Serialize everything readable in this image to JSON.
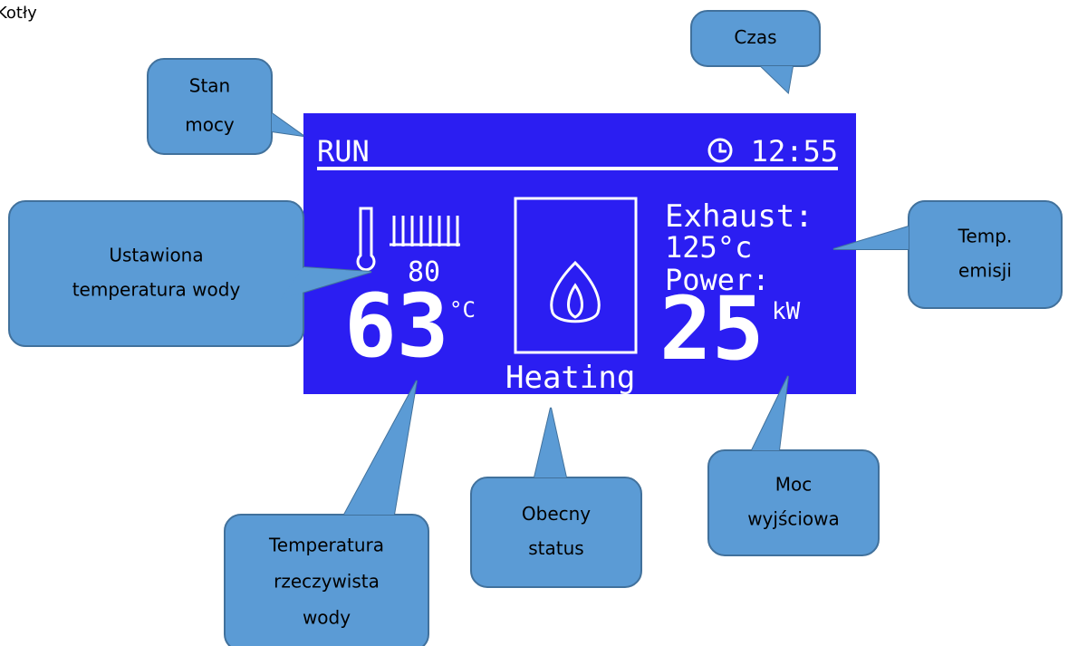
{
  "header": {
    "title": "Kotły"
  },
  "display": {
    "status": "RUN",
    "time": "12:55",
    "set_temperature": "80",
    "water_temperature": "63",
    "water_unit": "°C",
    "mode": "Heating",
    "exhaust_label": "Exhaust:",
    "exhaust_value": "125°c",
    "power_label": "Power:",
    "power_value": "25",
    "power_unit": "kW"
  },
  "callouts": [
    {
      "lines": [
        "Stan",
        "mocy"
      ]
    },
    {
      "lines": [
        "Czas"
      ]
    },
    {
      "lines": [
        "Ustawiona",
        "temperatura wody"
      ]
    },
    {
      "lines": [
        "Temp.",
        "emisji"
      ]
    },
    {
      "lines": [
        "Temperatura",
        "rzeczywista",
        "wody"
      ]
    },
    {
      "lines": [
        "Obecny",
        "status"
      ]
    },
    {
      "lines": [
        "Moc",
        "wyjściowa"
      ]
    }
  ]
}
